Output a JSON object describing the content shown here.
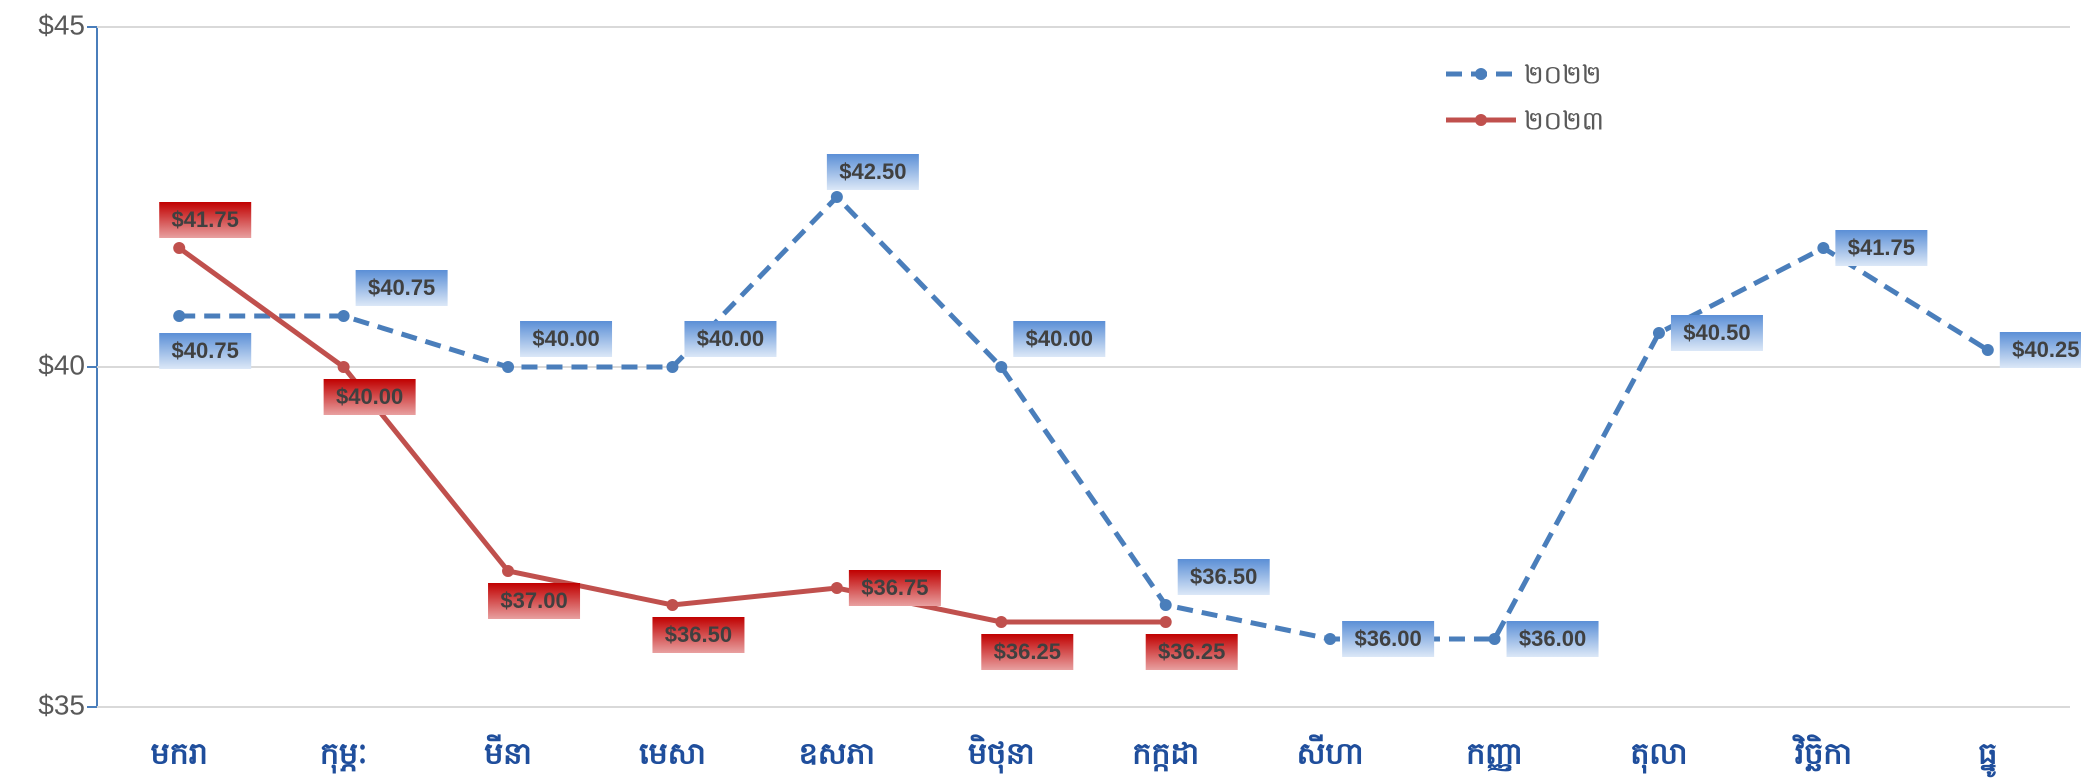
{
  "chart_data": {
    "type": "line",
    "categories": [
      "មករា",
      "កុម្ភៈ",
      "មីនា",
      "មេសា",
      "ឧសភា",
      "មិថុនា",
      "កក្កដា",
      "សីហា",
      "កញ្ញា",
      "តុលា",
      "វិច្ឆិកា",
      "ធ្នូ"
    ],
    "series": [
      {
        "name": "២០២២",
        "color": "#4a7ebb",
        "dashed": true,
        "values": [
          40.75,
          40.75,
          40,
          40,
          42.5,
          40,
          36.5,
          36,
          36,
          40.5,
          41.75,
          40.25
        ],
        "value_labels": [
          "$40.75",
          "$40.75",
          "$40.00",
          "$40.00",
          "$42.50",
          "$40.00",
          "$36.50",
          "$36.00",
          "$36.00",
          "$40.50",
          "$41.75",
          "$40.25"
        ]
      },
      {
        "name": "២០២៣",
        "color": "#c0504d",
        "dashed": false,
        "values": [
          41.75,
          40,
          37,
          36.5,
          36.75,
          36.25,
          36.25,
          null,
          null,
          null,
          null,
          null
        ],
        "value_labels": [
          "$41.75",
          "$40.00",
          "$37.00",
          "$36.50",
          "$36.75",
          "$36.25",
          "$36.25",
          null,
          null,
          null,
          null,
          null
        ]
      }
    ],
    "ylim": [
      35,
      45
    ],
    "yticks": [
      {
        "value": 35,
        "label": "$35"
      },
      {
        "value": 40,
        "label": "$40"
      },
      {
        "value": 45,
        "label": "$45"
      }
    ],
    "grid": true,
    "legend": "top-right"
  }
}
